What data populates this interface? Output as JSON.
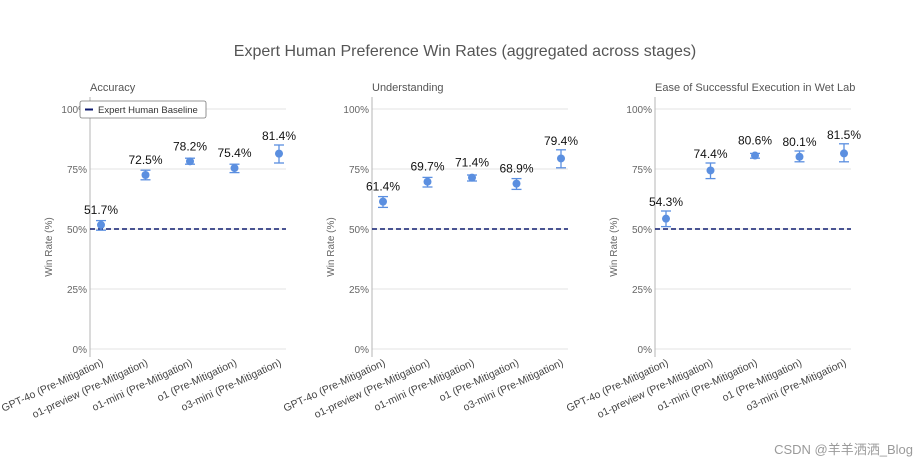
{
  "chart_data": {
    "type": "scatter",
    "title": "Expert Human Preference Win Rates (aggregated across stages)",
    "ylabel": "Win Rate (%)",
    "ylim": [
      0,
      100
    ],
    "yticks": [
      0,
      25,
      50,
      75,
      100
    ],
    "ytick_labels": [
      "0%",
      "25%",
      "50%",
      "75%",
      "100%"
    ],
    "baseline": {
      "value": 50,
      "label": "Expert Human Baseline",
      "color": "#0d1a6e"
    },
    "marker_color": "#5b8fe0",
    "categories": [
      "GPT-4o (Pre-Mitigation)",
      "o1-preview (Pre-Mitigation)",
      "o1-mini (Pre-Mitigation)",
      "o1 (Pre-Mitigation)",
      "o3-mini (Pre-Mitigation)"
    ],
    "panels": [
      {
        "name": "Accuracy",
        "values": [
          51.7,
          72.5,
          78.2,
          75.4,
          81.4
        ],
        "labels": [
          "51.7%",
          "72.5%",
          "78.2%",
          "75.4%",
          "81.4%"
        ],
        "err_low": [
          49.5,
          70.5,
          77.0,
          73.5,
          77.5
        ],
        "err_high": [
          53.5,
          74.5,
          79.5,
          77.0,
          85.0
        ],
        "legend": true
      },
      {
        "name": "Understanding",
        "values": [
          61.4,
          69.7,
          71.4,
          68.9,
          79.4
        ],
        "labels": [
          "61.4%",
          "69.7%",
          "71.4%",
          "68.9%",
          "79.4%"
        ],
        "err_low": [
          59.0,
          67.5,
          70.0,
          66.5,
          75.5
        ],
        "err_high": [
          63.5,
          71.5,
          72.5,
          71.0,
          83.0
        ],
        "legend": false
      },
      {
        "name": "Ease of Successful Execution in Wet Lab",
        "values": [
          54.3,
          74.4,
          80.6,
          80.1,
          81.5
        ],
        "labels": [
          "54.3%",
          "74.4%",
          "80.6%",
          "80.1%",
          "81.5%"
        ],
        "err_low": [
          51.0,
          71.0,
          79.5,
          78.0,
          78.0
        ],
        "err_high": [
          57.5,
          77.5,
          81.5,
          82.5,
          85.5
        ],
        "legend": false
      }
    ]
  },
  "watermark": "CSDN @羊羊洒洒_Blog"
}
